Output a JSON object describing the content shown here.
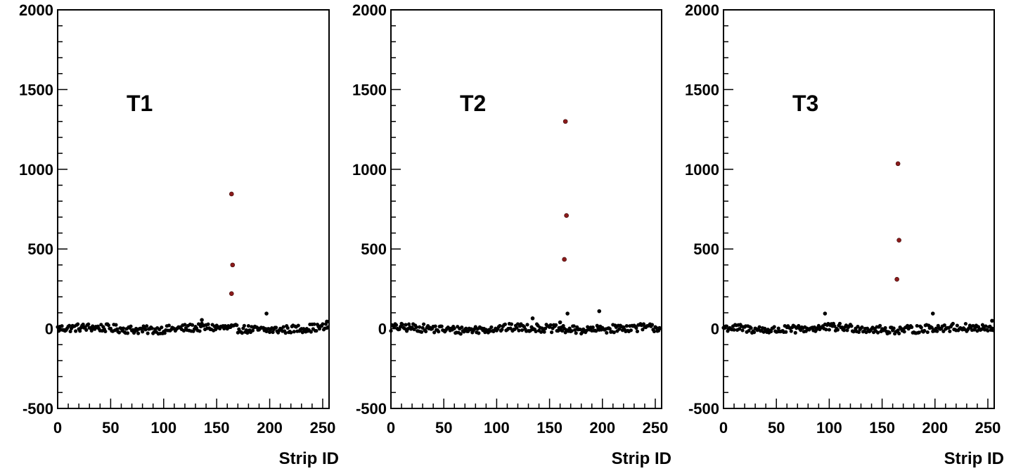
{
  "chart_data": [
    {
      "type": "scatter",
      "panel_label": "T1",
      "xlabel": "Strip ID",
      "ylabel": "",
      "xlim": [
        0,
        256
      ],
      "ylim": [
        -500,
        2000
      ],
      "x_ticks": [
        "0",
        "50",
        "100",
        "150",
        "200",
        "250"
      ],
      "y_ticks": [
        "2000",
        "1500",
        "1000",
        "500",
        "0",
        "-500"
      ],
      "signal_color": "#8b1a1a",
      "noise_color": "#000000",
      "signal_points": [
        {
          "x": 164,
          "y": 845
        },
        {
          "x": 165,
          "y": 400
        },
        {
          "x": 164,
          "y": 220
        }
      ],
      "noise_outliers": [
        {
          "x": 197,
          "y": 95
        },
        {
          "x": 136,
          "y": 55
        },
        {
          "x": 254,
          "y": 45
        }
      ],
      "noise_band": {
        "mean": 0,
        "spread": 25
      }
    },
    {
      "type": "scatter",
      "panel_label": "T2",
      "xlabel": "Strip ID",
      "ylabel": "",
      "xlim": [
        0,
        256
      ],
      "ylim": [
        -500,
        2000
      ],
      "x_ticks": [
        "0",
        "50",
        "100",
        "150",
        "200",
        "250"
      ],
      "y_ticks": [
        "2000",
        "1500",
        "1000",
        "500",
        "0",
        "-500"
      ],
      "signal_color": "#8b1a1a",
      "noise_color": "#000000",
      "signal_points": [
        {
          "x": 165,
          "y": 1300
        },
        {
          "x": 166,
          "y": 710
        },
        {
          "x": 164,
          "y": 435
        }
      ],
      "noise_outliers": [
        {
          "x": 167,
          "y": 95
        },
        {
          "x": 197,
          "y": 110
        },
        {
          "x": 134,
          "y": 65
        },
        {
          "x": 160,
          "y": 40
        }
      ],
      "noise_band": {
        "mean": 0,
        "spread": 25
      }
    },
    {
      "type": "scatter",
      "panel_label": "T3",
      "xlabel": "Strip ID",
      "ylabel": "",
      "xlim": [
        0,
        256
      ],
      "ylim": [
        -500,
        2000
      ],
      "x_ticks": [
        "0",
        "50",
        "100",
        "150",
        "200",
        "250"
      ],
      "y_ticks": [
        "2000",
        "1500",
        "1000",
        "500",
        "0",
        "-500"
      ],
      "signal_color": "#8b1a1a",
      "noise_color": "#000000",
      "signal_points": [
        {
          "x": 165,
          "y": 1035
        },
        {
          "x": 166,
          "y": 555
        },
        {
          "x": 164,
          "y": 310
        }
      ],
      "noise_outliers": [
        {
          "x": 96,
          "y": 95
        },
        {
          "x": 198,
          "y": 95
        },
        {
          "x": 254,
          "y": 50
        }
      ],
      "noise_band": {
        "mean": 0,
        "spread": 25
      }
    }
  ]
}
